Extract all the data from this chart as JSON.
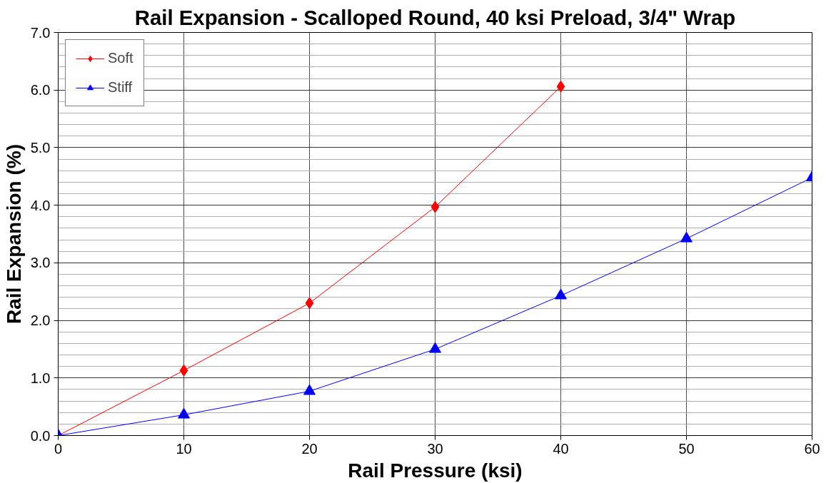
{
  "chart_data": {
    "type": "line",
    "title": "Rail Expansion - Scalloped Round, 40 ksi Preload, 3/4\" Wrap",
    "xlabel": "Rail Pressure (ksi)",
    "ylabel": "Rail Expansion (%)",
    "series": [
      {
        "name": "Soft",
        "color": "#ff0000",
        "marker": "diamond",
        "x": [
          0,
          10,
          20,
          30,
          40
        ],
        "values": [
          0,
          1.13,
          2.3,
          3.97,
          6.06
        ]
      },
      {
        "name": "Stiff",
        "color": "#0000ff",
        "marker": "triangle",
        "x": [
          0,
          10,
          20,
          30,
          40,
          50,
          60
        ],
        "values": [
          0,
          0.36,
          0.77,
          1.5,
          2.43,
          3.42,
          4.48
        ]
      }
    ],
    "xlim": [
      0,
      60
    ],
    "xticks": [
      0,
      10,
      20,
      30,
      40,
      50,
      60
    ],
    "ylim": [
      0,
      7
    ],
    "yticks": [
      {
        "value": 0,
        "label": "0.0"
      },
      {
        "value": 1,
        "label": "1.0"
      },
      {
        "value": 2,
        "label": "2.0"
      },
      {
        "value": 3,
        "label": "3.0"
      },
      {
        "value": 4,
        "label": "4.0"
      },
      {
        "value": 5,
        "label": "5.0"
      },
      {
        "value": 6,
        "label": "6.0"
      },
      {
        "value": 7,
        "label": "7.0"
      }
    ],
    "grid": true,
    "legend": "top left",
    "line_style": "solid"
  }
}
